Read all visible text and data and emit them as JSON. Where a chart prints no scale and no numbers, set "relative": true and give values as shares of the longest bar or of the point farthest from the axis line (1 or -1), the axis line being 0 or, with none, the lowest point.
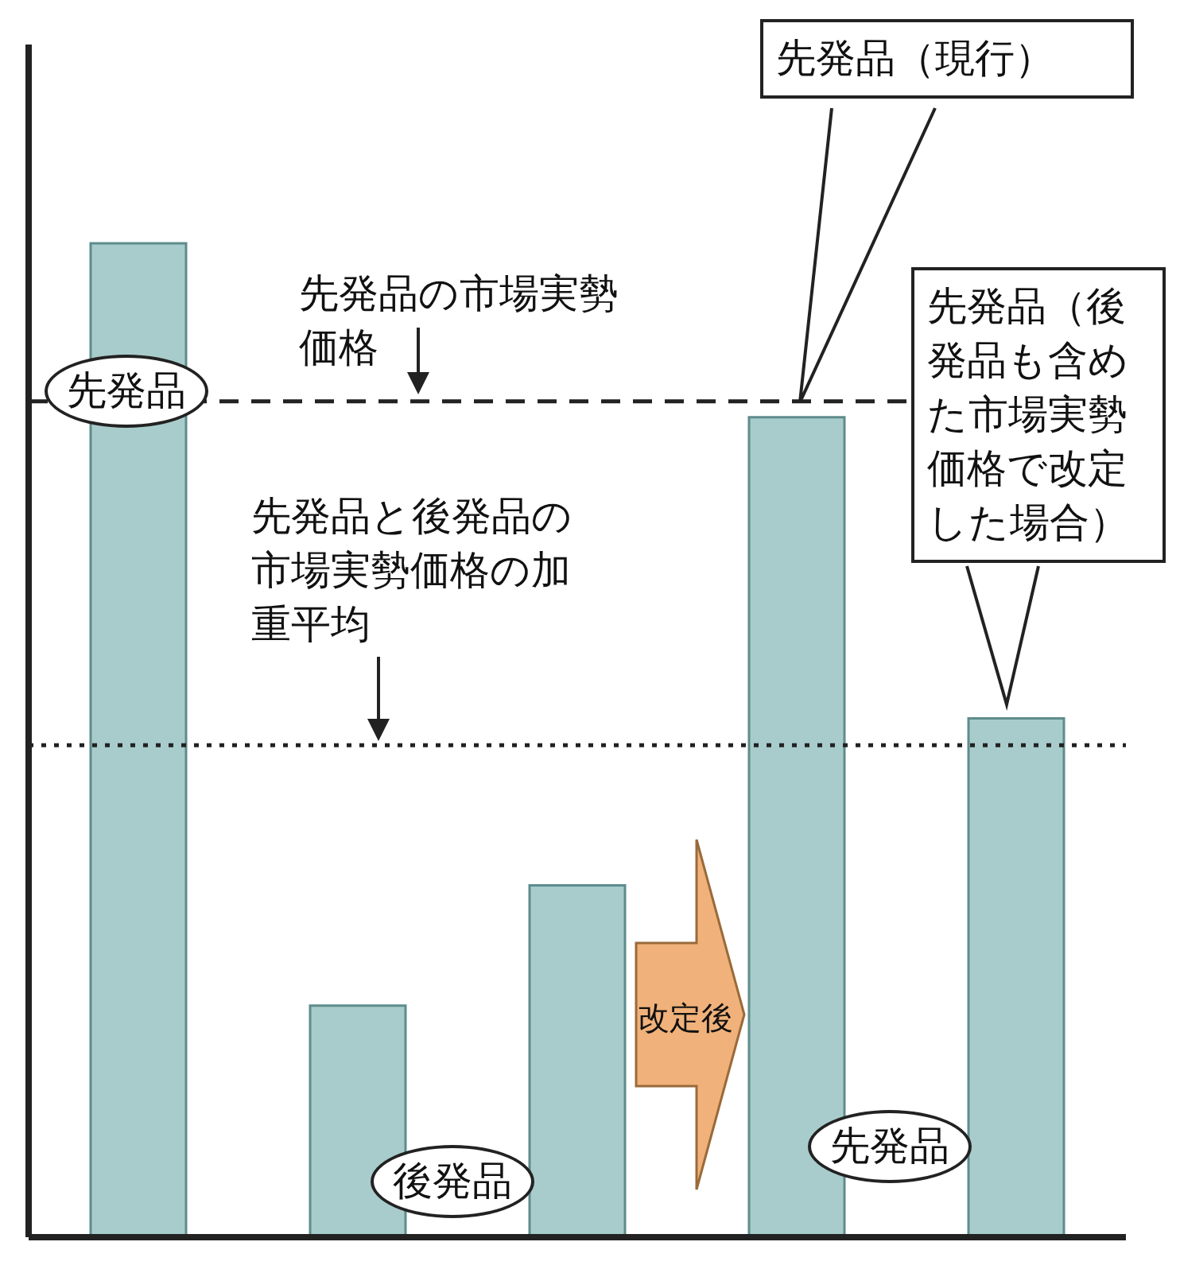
{
  "chart_data": {
    "type": "bar",
    "relative": true,
    "categories": [
      null,
      null,
      null,
      null,
      null
    ],
    "values": [
      1,
      0.233,
      0.354,
      0.825,
      0.522
    ],
    "color": "#a8cccb",
    "ref_lines": [
      {
        "axis": "y",
        "value": 0.841,
        "label": "先発品の市場実勢価格",
        "line_style": "dashed",
        "color": "#222222"
      },
      {
        "axis": "y",
        "value": 0.495,
        "label": "先発品と後発品の市場実勢価格の加重平均",
        "line_style": "dotted",
        "color": "#222222"
      }
    ],
    "annotations": [
      "先発品",
      "後発品",
      "先発品",
      "先発品（現行）",
      "先発品（後発品も含めた市場実勢価格で改定した場合）",
      "改定後"
    ]
  }
}
